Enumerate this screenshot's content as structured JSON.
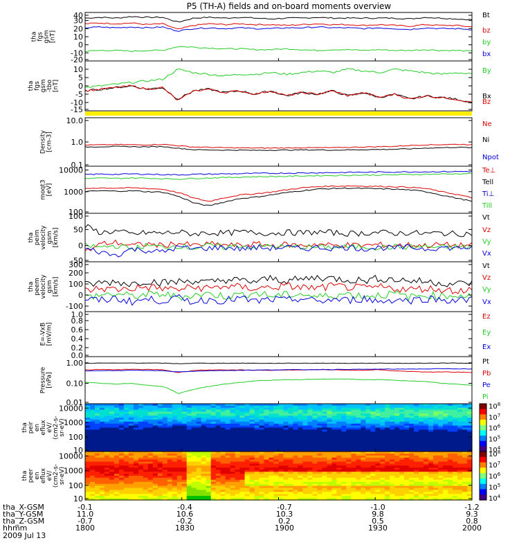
{
  "title": "P5 (TH-A) fields and on-board moments overview",
  "date_label": "2009 Jul 13",
  "colors": {
    "black": "#000000",
    "red": "#dd0000",
    "green": "#22cc22",
    "blue": "#0000dd",
    "yellow": "#ffee00"
  },
  "chart_data": [
    {
      "type": "line",
      "panel": "fgs-magnitude",
      "ylabel": [
        "tha",
        "fgs",
        "gsm",
        "[nT]"
      ],
      "ylim": [
        -20,
        40
      ],
      "yticks": [
        40,
        30,
        20,
        10,
        0,
        -10,
        -20
      ],
      "scale": "linear",
      "series": [
        {
          "name": "Bt",
          "color": "black",
          "values": [
            33,
            34,
            33,
            35,
            34,
            34,
            28,
            33,
            34,
            33,
            34,
            33,
            32,
            33,
            33,
            34,
            33,
            33,
            33,
            33,
            33,
            32,
            34,
            33,
            32,
            31
          ]
        },
        {
          "name": "bz",
          "color": "red",
          "values": [
            26,
            27,
            26,
            27,
            25,
            26,
            19,
            24,
            26,
            25,
            26,
            25,
            25,
            24,
            25,
            26,
            25,
            25,
            24,
            25,
            24,
            23,
            25,
            24,
            24,
            22
          ]
        },
        {
          "name": "by",
          "color": "green",
          "values": [
            -8,
            -7,
            -7,
            -8,
            -7,
            -7,
            -2,
            -3,
            -4,
            -5,
            -5,
            -6,
            -6,
            -5,
            -6,
            -7,
            -6,
            -6,
            -7,
            -6,
            -7,
            -7,
            -6,
            -7,
            -7,
            -8
          ]
        },
        {
          "name": "bx",
          "color": "blue",
          "values": [
            21,
            22,
            21,
            22,
            21,
            22,
            17,
            20,
            21,
            20,
            21,
            20,
            20,
            21,
            21,
            22,
            21,
            21,
            20,
            21,
            20,
            19,
            21,
            20,
            20,
            19
          ]
        }
      ]
    },
    {
      "type": "line",
      "panel": "fgs-detrended",
      "ylabel": [
        "tha",
        "fgs",
        "gsm",
        "-tbo",
        "[nT]"
      ],
      "ylim": [
        -15,
        15
      ],
      "yticks": [
        10,
        5,
        0,
        -5,
        -10,
        -15
      ],
      "scale": "linear",
      "series": [
        {
          "name": "By",
          "color": "green",
          "values": [
            -1,
            0,
            1,
            2,
            3,
            4,
            10,
            8,
            7,
            6,
            7,
            7,
            8,
            7,
            8,
            9,
            8,
            10,
            9,
            8,
            10,
            9,
            8,
            7,
            8,
            7
          ]
        },
        {
          "name": "Bx",
          "color": "black",
          "values": [
            -3,
            -2,
            -1,
            0,
            -2,
            -1,
            -8,
            -3,
            -2,
            -4,
            -3,
            -5,
            -3,
            -6,
            -4,
            -5,
            -3,
            -6,
            -4,
            -7,
            -5,
            -8,
            -6,
            -7,
            -8,
            -10
          ]
        },
        {
          "name": "Bz",
          "color": "red",
          "values": [
            -3,
            -2,
            -1,
            0,
            -2,
            -1,
            -9,
            -3,
            -2,
            -4,
            -3,
            -5,
            -3,
            -6,
            -4,
            -5,
            -3,
            -6,
            -4,
            -7,
            -5,
            -8,
            -6,
            -7,
            -8,
            -10
          ]
        }
      ]
    },
    {
      "type": "line",
      "panel": "density",
      "ylabel": [
        "Density",
        "[cm-3]"
      ],
      "ylim": [
        0.1,
        10
      ],
      "yticks": [
        "10.0",
        "1.0",
        "0.1"
      ],
      "scale": "log",
      "series": [
        {
          "name": "Ne",
          "color": "red",
          "values": [
            0.75,
            0.76,
            0.78,
            0.77,
            0.76,
            0.8,
            0.7,
            0.62,
            0.6,
            0.58,
            0.57,
            0.56,
            0.56,
            0.57,
            0.58,
            0.58,
            0.58,
            0.6,
            0.62,
            0.64,
            0.66,
            0.72,
            0.76,
            0.78,
            0.8,
            0.78
          ]
        },
        {
          "name": "Ni",
          "color": "black",
          "values": [
            0.62,
            0.64,
            0.65,
            0.64,
            0.63,
            0.65,
            0.55,
            0.48,
            0.47,
            0.46,
            0.46,
            0.45,
            0.46,
            0.46,
            0.47,
            0.47,
            0.46,
            0.47,
            0.48,
            0.49,
            0.5,
            0.52,
            0.56,
            0.58,
            0.6,
            0.58
          ]
        },
        {
          "name": "Npot",
          "color": "blue",
          "values": []
        }
      ]
    },
    {
      "type": "line",
      "panel": "temperature",
      "ylabel": [
        "moqt3",
        "[eV]"
      ],
      "ylim": [
        100,
        15000
      ],
      "yticks": [
        "10000",
        "1000",
        "100"
      ],
      "scale": "log",
      "series": [
        {
          "name": "Te⊥",
          "color": "red",
          "values": [
            1400,
            1500,
            1450,
            1500,
            1400,
            1300,
            900,
            500,
            350,
            520,
            700,
            800,
            950,
            1200,
            1500,
            1700,
            1800,
            1850,
            1800,
            1750,
            1700,
            1600,
            1400,
            1000,
            750,
            500
          ]
        },
        {
          "name": "Tell",
          "color": "black",
          "values": [
            1000,
            1100,
            1050,
            1100,
            1000,
            950,
            600,
            300,
            220,
            330,
            480,
            560,
            700,
            900,
            1100,
            1300,
            1400,
            1450,
            1400,
            1350,
            1300,
            1200,
            1000,
            700,
            500,
            350
          ]
        },
        {
          "name": "Ti⊥",
          "color": "blue",
          "values": [
            6200,
            6500,
            6300,
            6600,
            6400,
            6200,
            6000,
            6300,
            6500,
            6600,
            6800,
            7000,
            7100,
            7200,
            7300,
            7500,
            7600,
            7800,
            7900,
            8000,
            8100,
            8200,
            8300,
            8400,
            8500,
            8600
          ]
        },
        {
          "name": "Till",
          "color": "green",
          "values": [
            4000,
            4200,
            4100,
            4300,
            4200,
            4000,
            3800,
            4100,
            4300,
            4500,
            4700,
            4900,
            5000,
            5100,
            5300,
            5500,
            5600,
            5700,
            5800,
            5900,
            6000,
            6200,
            6400,
            6500,
            6700,
            6900
          ]
        }
      ]
    },
    {
      "type": "line",
      "panel": "ion-velocity",
      "ylabel": [
        "tha",
        "peim",
        "velocity",
        "gsm",
        "[km/s]"
      ],
      "ylim": [
        -50,
        100
      ],
      "yticks": [
        100,
        50,
        0,
        -50
      ],
      "scale": "linear",
      "series": [
        {
          "name": "Vt",
          "color": "black",
          "values": [
            60,
            40,
            45,
            35,
            40,
            38,
            42,
            36,
            40,
            38,
            42,
            40,
            38,
            41,
            39,
            42,
            40,
            37,
            39,
            41,
            38,
            40,
            37,
            39,
            36,
            38
          ]
        },
        {
          "name": "Vz",
          "color": "red",
          "values": [
            -20,
            5,
            10,
            0,
            5,
            0,
            8,
            0,
            5,
            2,
            0,
            5,
            0,
            3,
            0,
            5,
            0,
            2,
            0,
            3,
            0,
            2,
            0,
            3,
            0,
            2
          ]
        },
        {
          "name": "Vy",
          "color": "green",
          "values": [
            0,
            -5,
            0,
            -10,
            0,
            -5,
            0,
            -8,
            0,
            -5,
            0,
            -6,
            0,
            -5,
            -3,
            -6,
            -4,
            -5,
            -3,
            -6,
            -4,
            -5,
            -3,
            -6,
            -4,
            -5
          ]
        },
        {
          "name": "Vx",
          "color": "blue",
          "values": [
            -10,
            -20,
            -30,
            -10,
            -15,
            -20,
            -5,
            -10,
            -8,
            -5,
            -10,
            -6,
            -8,
            -5,
            -10,
            -6,
            -8,
            -5,
            -10,
            -6,
            -8,
            -5,
            -10,
            -6,
            -8,
            -5
          ]
        }
      ]
    },
    {
      "type": "line",
      "panel": "electron-velocity",
      "ylabel": [
        "tha",
        "peem",
        "velocity",
        "gsm",
        "[km/s]"
      ],
      "ylim": [
        -150,
        300
      ],
      "yticks": [
        300,
        200,
        100,
        0,
        -100
      ],
      "scale": "linear",
      "series": [
        {
          "name": "Vt",
          "color": "black",
          "values": [
            90,
            110,
            120,
            100,
            130,
            110,
            120,
            130,
            110,
            140,
            130,
            120,
            150,
            130,
            140,
            160,
            150,
            140,
            130,
            150,
            140,
            130,
            120,
            110,
            100,
            110
          ]
        },
        {
          "name": "Vz",
          "color": "red",
          "values": [
            40,
            60,
            50,
            60,
            70,
            60,
            50,
            70,
            60,
            80,
            70,
            60,
            70,
            80,
            70,
            60,
            80,
            70,
            60,
            70,
            60,
            50,
            60,
            50,
            40,
            50
          ]
        },
        {
          "name": "Vy",
          "color": "green",
          "values": [
            -20,
            0,
            10,
            -10,
            0,
            10,
            -20,
            0,
            10,
            -10,
            0,
            20,
            -10,
            0,
            10,
            -20,
            0,
            10,
            -10,
            0,
            10,
            -20,
            0,
            -10,
            0,
            -10
          ]
        },
        {
          "name": "Vx",
          "color": "blue",
          "values": [
            -40,
            -50,
            -30,
            -60,
            -40,
            -50,
            -30,
            -60,
            -40,
            -50,
            -30,
            -60,
            -40,
            -50,
            -30,
            -60,
            -40,
            -50,
            -30,
            -60,
            -40,
            -50,
            -30,
            -40,
            -50,
            -40
          ]
        }
      ]
    },
    {
      "type": "line",
      "panel": "efield",
      "ylabel": [
        "E=-VxB",
        "[mV/m]"
      ],
      "ylim": [
        0,
        1
      ],
      "yticks": [
        "1.0",
        "0.8",
        "0.6",
        "0.4",
        "0.2",
        "0.0"
      ],
      "scale": "linear",
      "series": [
        {
          "name": "Ez",
          "color": "red",
          "values": []
        },
        {
          "name": "Ey",
          "color": "green",
          "values": []
        },
        {
          "name": "Ex",
          "color": "blue",
          "values": []
        }
      ]
    },
    {
      "type": "line",
      "panel": "pressure",
      "ylabel": [
        "Pressure",
        "[nPa]"
      ],
      "ylim": [
        0.01,
        2
      ],
      "yticks": [
        "1.00",
        "0.10",
        "0.01"
      ],
      "scale": "log",
      "series": [
        {
          "name": "Pt",
          "color": "black",
          "values": [
            0.95,
            0.97,
            0.96,
            0.98,
            0.97,
            0.96,
            0.9,
            0.95,
            0.96,
            0.95,
            0.96,
            0.95,
            0.94,
            0.95,
            0.95,
            0.96,
            0.95,
            0.95,
            0.95,
            0.96,
            0.95,
            0.94,
            0.96,
            0.97,
            0.98,
            0.95
          ]
        },
        {
          "name": "Pb",
          "color": "red",
          "values": [
            0.45,
            0.47,
            0.46,
            0.48,
            0.47,
            0.46,
            0.33,
            0.42,
            0.45,
            0.44,
            0.45,
            0.44,
            0.43,
            0.45,
            0.44,
            0.46,
            0.45,
            0.44,
            0.43,
            0.46,
            0.4,
            0.38,
            0.35,
            0.36,
            0.35,
            0.33
          ]
        },
        {
          "name": "Pe",
          "color": "blue",
          "values": [
            0.4,
            0.42,
            0.41,
            0.43,
            0.42,
            0.41,
            0.36,
            0.39,
            0.41,
            0.42,
            0.43,
            0.44,
            0.45,
            0.46,
            0.46,
            0.47,
            0.47,
            0.48,
            0.48,
            0.49,
            0.49,
            0.5,
            0.5,
            0.51,
            0.51,
            0.5
          ]
        },
        {
          "name": "Pi",
          "color": "green",
          "values": [
            0.11,
            0.1,
            0.09,
            0.1,
            0.08,
            0.07,
            0.03,
            0.05,
            0.07,
            0.09,
            0.11,
            0.13,
            0.14,
            0.15,
            0.15,
            0.16,
            0.16,
            0.16,
            0.15,
            0.15,
            0.14,
            0.13,
            0.12,
            0.1,
            0.09,
            0.08
          ]
        }
      ]
    },
    {
      "type": "heatmap",
      "panel": "ion-energy-flux",
      "ylabel": [
        "tha",
        "peir",
        "en",
        "eflux",
        "eV/",
        "(cm2-s-",
        "sr-eV)"
      ],
      "yticks": [
        "10000",
        "1000",
        "100",
        "10"
      ],
      "scale": "log",
      "colorbar_ticks": [
        "10^8",
        "10^7",
        "10^6",
        "10^5",
        "10^4"
      ],
      "energy_range_eV": [
        10,
        20000
      ]
    },
    {
      "type": "heatmap",
      "panel": "electron-energy-flux",
      "ylabel": [
        "tha",
        "peer",
        "en",
        "eflux",
        "eV/",
        "(cm2-s-",
        "sr-eV)"
      ],
      "yticks": [
        "10000",
        "1000",
        "100",
        "10"
      ],
      "scale": "log",
      "colorbar_ticks": [
        "10^8",
        "10^7",
        "10^6",
        "10^5",
        "10^4"
      ],
      "energy_range_eV": [
        10,
        20000
      ]
    }
  ],
  "ephemeris": {
    "labels": [
      "tha_X-GSM",
      "tha_Y-GSM",
      "tha_Z-GSM",
      "hhmm"
    ],
    "columns": [
      {
        "time": "0.0",
        "X": "-0.1",
        "Y": "11.0",
        "Z": "-0.7",
        "hhmm": "1800"
      },
      {
        "time": "0.2",
        "X": "-0.4",
        "Y": "10.6",
        "Z": "-0.2",
        "hhmm": "1830"
      },
      {
        "time": "0.4",
        "X": "-0.7",
        "Y": "10.3",
        "Z": "0.2",
        "hhmm": "1900"
      },
      {
        "time": "0.6",
        "X": "-1.0",
        "Y": "9.8",
        "Z": "0.5",
        "hhmm": "1930"
      },
      {
        "time": "0.8",
        "X": "-1.2",
        "Y": "9.3",
        "Z": "0.8",
        "hhmm": "2000"
      }
    ]
  }
}
